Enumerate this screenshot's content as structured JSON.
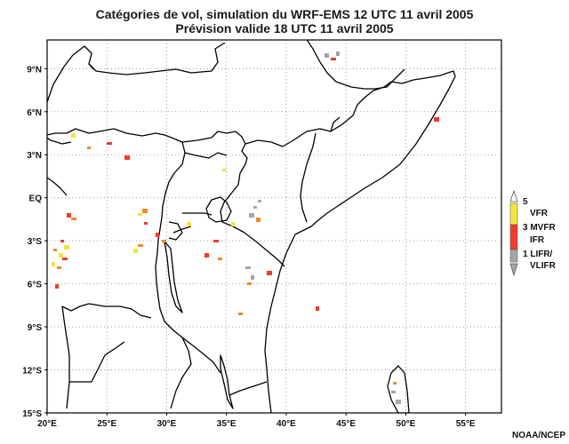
{
  "title": {
    "line1": "Catégories de vol, simulation du WRF-EMS 12 UTC 11 avril 2005",
    "line2": "Prévision valide 18 UTC 11 avril 2005"
  },
  "credit": "NOAA/NCEP",
  "axes": {
    "lat_ticks": [
      "9°N",
      "6°N",
      "3°N",
      "EQ",
      "3°S",
      "6°S",
      "9°S",
      "12°S",
      "15°S"
    ],
    "lon_ticks": [
      "20°E",
      "25°E",
      "30°E",
      "35°E",
      "40°E",
      "45°E",
      "50°E",
      "55°E"
    ],
    "lat_range": [
      -15,
      11
    ],
    "lon_range": [
      20,
      58
    ],
    "grid": "dotted"
  },
  "legend": {
    "labels": [
      "5",
      "VFR",
      "3 MVFR",
      "IFR",
      "1 LIFR/",
      "VLIFR"
    ],
    "colors": {
      "vfr": "#f2e43a",
      "mvfr": "#f08a2a",
      "ifr": "#ee3b2e",
      "lifr": "#a6a6a6"
    }
  },
  "icons": {
    "legend_up_arrow": "triangle-up",
    "legend_down_arrow": "triangle-down"
  }
}
